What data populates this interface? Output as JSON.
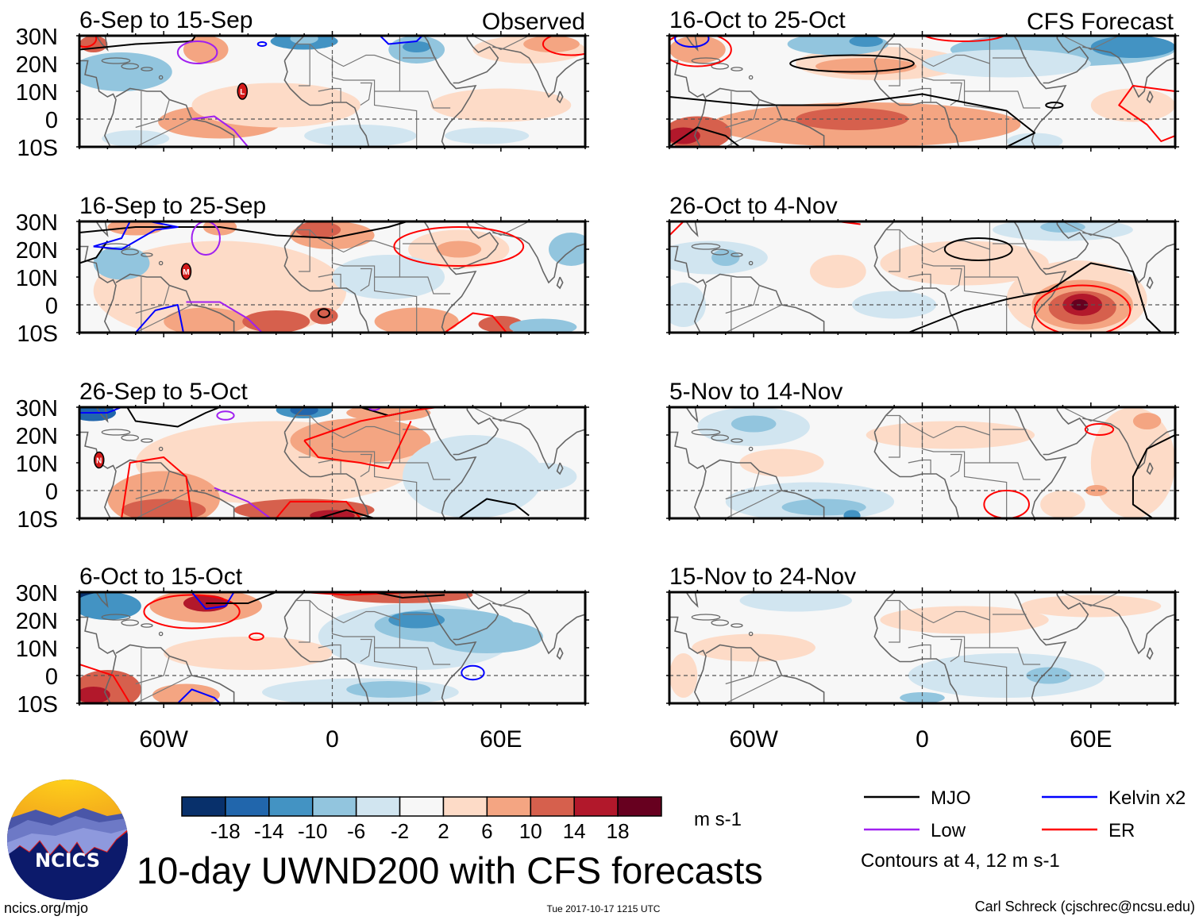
{
  "chart_data": {
    "type": "heatmap",
    "title": "10-day UWND200 with CFS forecasts",
    "variable": "200-hPa zonal wind anomaly",
    "units": "m s-1",
    "x_axis": {
      "range": [
        -90,
        90
      ],
      "ticks": [
        -60,
        0,
        60
      ],
      "tick_labels": [
        "60W",
        "0",
        "60E"
      ]
    },
    "y_axis": {
      "range": [
        -10,
        30
      ],
      "ticks": [
        30,
        20,
        10,
        0,
        -10
      ],
      "tick_labels": [
        "30N",
        "20N",
        "10N",
        "0",
        "10S"
      ]
    },
    "colorbar": {
      "levels": [
        -18,
        -14,
        -10,
        -6,
        -2,
        2,
        6,
        10,
        14,
        18
      ],
      "tick_labels": [
        "-18",
        "-14",
        "-10",
        "-6",
        "-2",
        "2",
        "6",
        "10",
        "14",
        "18"
      ],
      "colors": [
        "#08306b",
        "#2166ac",
        "#4393c3",
        "#92c5de",
        "#d1e5f0",
        "#f7f7f7",
        "#fddbc7",
        "#f4a582",
        "#d6604d",
        "#b2182b",
        "#67001f"
      ],
      "units_label": "m s-1"
    },
    "columns": [
      {
        "header": "Observed",
        "panels": [
          "6-Sep to 15-Sep",
          "16-Sep to 25-Sep",
          "26-Sep to 5-Oct",
          "6-Oct to 15-Oct"
        ]
      },
      {
        "header": "CFS Forecast",
        "panels": [
          "16-Oct to 25-Oct",
          "26-Oct to 4-Nov",
          "5-Nov to 14-Nov",
          "15-Nov to 24-Nov"
        ]
      }
    ],
    "legend": {
      "placement": "bottom-right",
      "entries": [
        {
          "label": "MJO",
          "color": "#000000"
        },
        {
          "label": "Kelvin x2",
          "color": "#0000ff"
        },
        {
          "label": "Low",
          "color": "#a020f0"
        },
        {
          "label": "ER",
          "color": "#ff0000"
        }
      ],
      "note": "Contours at 4, 12 m s-1"
    },
    "storm_markers": [
      {
        "panel": "6-Sep to 15-Sep",
        "letter": "L",
        "lon": -32,
        "lat": 10
      },
      {
        "panel": "16-Sep to 25-Sep",
        "letter": "M",
        "lon": -52,
        "lat": 12
      },
      {
        "panel": "26-Sep to 5-Oct",
        "letter": "N",
        "lon": -83,
        "lat": 11
      }
    ]
  },
  "header": {
    "left_title": "6-Sep to 15-Sep",
    "observed_label": "Observed",
    "forecast_label": "CFS Forecast"
  },
  "footer": {
    "logo_text": "NCICS",
    "site": "ncics.org/mjo",
    "timestamp": "Tue 2017-10-17 1215 UTC",
    "author": "Carl Schreck (cjschrec@ncsu.edu)"
  }
}
